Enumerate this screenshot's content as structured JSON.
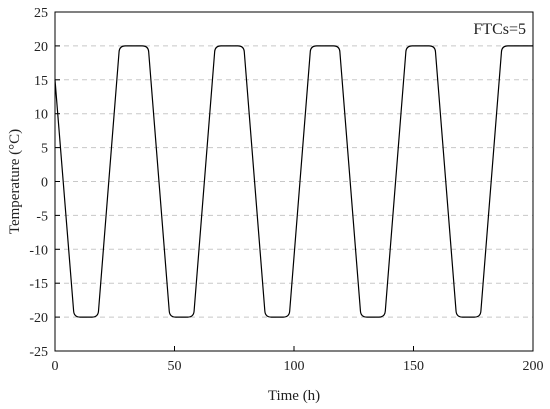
{
  "chart_data": {
    "type": "line",
    "title": "",
    "xlabel": "Time (h)",
    "ylabel": "Temperature (°C)",
    "xlim": [
      0,
      200
    ],
    "ylim": [
      -25,
      25
    ],
    "x_ticks": [
      0,
      50,
      100,
      150,
      200
    ],
    "y_ticks": [
      -25,
      -20,
      -15,
      -10,
      -5,
      0,
      5,
      10,
      15,
      20,
      25
    ],
    "grid": "horizontal-dashed",
    "legend": "none",
    "annotation": "FTCs=5",
    "series": [
      {
        "x": [
          0,
          8,
          18,
          27,
          39,
          48,
          58,
          67,
          79,
          88,
          98,
          107,
          119,
          128,
          138,
          147,
          159,
          168,
          178,
          187,
          200
        ],
        "y": [
          15,
          -20,
          -20,
          20,
          20,
          -20,
          -20,
          20,
          20,
          -20,
          -20,
          20,
          20,
          -20,
          -20,
          20,
          20,
          -20,
          -20,
          20,
          20
        ],
        "color": "#000000"
      }
    ]
  }
}
